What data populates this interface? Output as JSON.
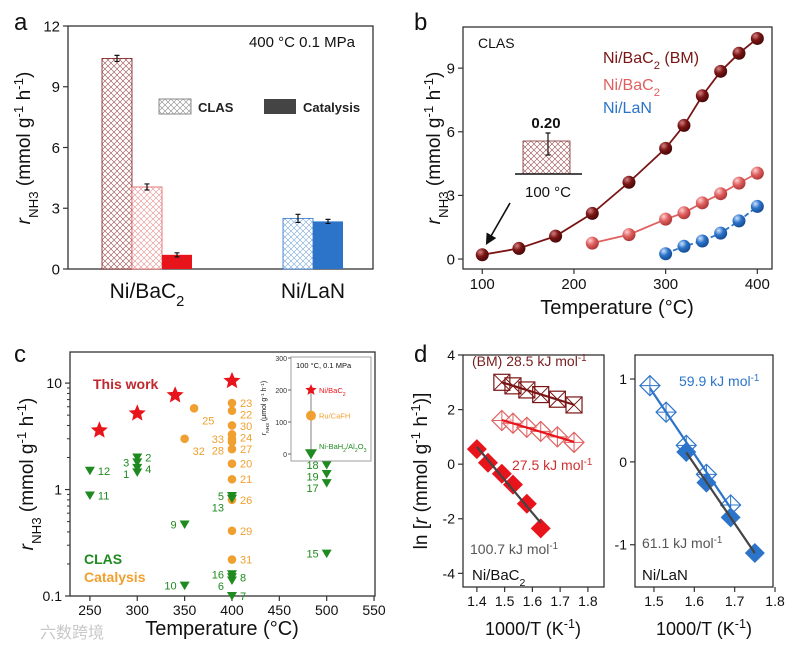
{
  "colors": {
    "bm": "#7a1515",
    "nibac2_clas": "#e06060",
    "nibac2_cat": "#e8141c",
    "lan": "#2b74c9",
    "clas_green": "#1f8a1f",
    "catalysis_orange": "#f0a030",
    "fit_gray": "#444444"
  },
  "panel_labels": [
    "a",
    "b",
    "c",
    "d"
  ],
  "watermark": "六数跨境",
  "chart_data": [
    {
      "id": "a",
      "type": "bar",
      "title": "400 °C  0.1 MPa",
      "ylabel": [
        [
          "r",
          "i"
        ],
        [
          "NH3",
          "sub"
        ],
        [
          " (mmol g",
          ""
        ],
        [
          "-1",
          "sup"
        ],
        [
          " h",
          ""
        ],
        [
          "-1",
          "sup"
        ],
        [
          ")",
          ""
        ]
      ],
      "ylim": [
        0,
        12
      ],
      "yticks": [
        0,
        3,
        6,
        9,
        12
      ],
      "categories": [
        [
          [
            "Ni/BaC",
            ""
          ],
          [
            "2",
            "sub"
          ]
        ],
        [
          [
            "Ni/LaN",
            ""
          ]
        ]
      ],
      "legend": [
        {
          "label": "CLAS",
          "style": "hatched"
        },
        {
          "label": "Catalysis",
          "style": "solid"
        }
      ],
      "bars": [
        {
          "category": 0,
          "series": "CLAS Ni/BaC2 (BM)",
          "value": 10.4,
          "error": 0.15,
          "style": "hatched",
          "color": "bm"
        },
        {
          "category": 0,
          "series": "CLAS Ni/BaC2",
          "value": 4.05,
          "error": 0.15,
          "style": "hatched",
          "color": "nibac2_clas"
        },
        {
          "category": 0,
          "series": "Catalysis Ni/BaC2",
          "value": 0.7,
          "error": 0.1,
          "style": "solid",
          "color": "nibac2_cat"
        },
        {
          "category": 1,
          "series": "CLAS Ni/LaN",
          "value": 2.5,
          "error": 0.2,
          "style": "hatched",
          "color": "lan"
        },
        {
          "category": 1,
          "series": "Catalysis Ni/LaN",
          "value": 2.35,
          "error": 0.1,
          "style": "solid",
          "color": "lan"
        }
      ]
    },
    {
      "id": "b",
      "type": "line",
      "title": "CLAS",
      "xlabel": "Temperature (°C)",
      "ylabel": [
        [
          "r",
          "i"
        ],
        [
          "NH3",
          "sub"
        ],
        [
          " (mmol g",
          ""
        ],
        [
          "-1",
          "sup"
        ],
        [
          " h",
          ""
        ],
        [
          "-1",
          "sup"
        ],
        [
          ")",
          ""
        ]
      ],
      "xlim": [
        79,
        416
      ],
      "ylim": [
        -0.47,
        10.94
      ],
      "xticks": [
        100,
        200,
        300,
        400
      ],
      "yticks": [
        0,
        3,
        6,
        9
      ],
      "series": [
        {
          "name": [
            [
              "Ni/BaC",
              ""
            ],
            [
              "2",
              "sub"
            ],
            [
              " (BM)",
              ""
            ]
          ],
          "color": "bm",
          "dash": false,
          "x": [
            100,
            140,
            180,
            220,
            260,
            300,
            320,
            340,
            360,
            380,
            400
          ],
          "y": [
            0.2,
            0.5,
            1.08,
            2.15,
            3.62,
            5.22,
            6.3,
            7.7,
            8.85,
            9.7,
            10.4
          ]
        },
        {
          "name": [
            [
              "Ni/BaC",
              ""
            ],
            [
              "2",
              "sub"
            ]
          ],
          "color": "nibac2_clas",
          "dash": false,
          "x": [
            220,
            260,
            300,
            320,
            340,
            360,
            380,
            400
          ],
          "y": [
            0.75,
            1.15,
            1.88,
            2.18,
            2.65,
            3.08,
            3.58,
            4.05
          ]
        },
        {
          "name": [
            [
              "Ni/LaN",
              ""
            ]
          ],
          "color": "lan",
          "dash": true,
          "x": [
            300,
            320,
            340,
            360,
            380,
            400
          ],
          "y": [
            0.25,
            0.6,
            0.85,
            1.22,
            1.8,
            2.48
          ]
        }
      ],
      "inset": {
        "value_label": "0.20",
        "temperature_label": "100 °C"
      }
    },
    {
      "id": "c",
      "type": "scatter",
      "xlabel": "Temperature (°C)",
      "ylabel": [
        [
          "r",
          "i"
        ],
        [
          "NH3",
          "sub"
        ],
        [
          " (mmol g",
          ""
        ],
        [
          "-1",
          "sup"
        ],
        [
          " h",
          ""
        ],
        [
          "-1",
          "sup"
        ],
        [
          ")",
          ""
        ]
      ],
      "xlim": [
        229,
        551
      ],
      "ylim": [
        0.1,
        19.6
      ],
      "yscale": "log",
      "xticks": [
        250,
        300,
        350,
        400,
        450,
        500,
        550
      ],
      "yticks": [
        0.1,
        1,
        10
      ],
      "legend": {
        "this_work": "This work",
        "clas": "CLAS",
        "catalysis": "Catalysis"
      },
      "this_work": {
        "x": [
          260,
          300,
          340,
          400
        ],
        "y": [
          3.6,
          5.2,
          7.7,
          10.5
        ]
      },
      "catalysis": [
        {
          "x": 360,
          "y": 5.8,
          "label": "25",
          "side": "below"
        },
        {
          "x": 350,
          "y": 3.0,
          "label": "32",
          "side": "below"
        },
        {
          "x": 400,
          "y": 6.5,
          "label": "23",
          "side": "right"
        },
        {
          "x": 400,
          "y": 5.5,
          "label": "22",
          "side": "right"
        },
        {
          "x": 400,
          "y": 4.0,
          "label": "30",
          "side": "right"
        },
        {
          "x": 400,
          "y": 3.3,
          "label": "24",
          "side": "right"
        },
        {
          "x": 400,
          "y": 3.0,
          "label": "33",
          "side": "left"
        },
        {
          "x": 400,
          "y": 2.8,
          "label": "27",
          "side": "right"
        },
        {
          "x": 400,
          "y": 2.4,
          "label": "28",
          "side": "left"
        },
        {
          "x": 400,
          "y": 1.75,
          "label": "20",
          "side": "right"
        },
        {
          "x": 400,
          "y": 1.25,
          "label": "21",
          "side": "right"
        },
        {
          "x": 400,
          "y": 0.8,
          "label": "26",
          "side": "right"
        },
        {
          "x": 400,
          "y": 0.41,
          "label": "29",
          "side": "right"
        },
        {
          "x": 400,
          "y": 0.22,
          "label": "31",
          "side": "right"
        }
      ],
      "clas": [
        {
          "x": 250,
          "y": 1.5,
          "label": "12",
          "side": "right"
        },
        {
          "x": 250,
          "y": 0.88,
          "label": "11",
          "side": "right"
        },
        {
          "x": 300,
          "y": 2.0,
          "label": "2",
          "side": "right"
        },
        {
          "x": 300,
          "y": 1.8,
          "label": "3",
          "side": "left"
        },
        {
          "x": 300,
          "y": 1.6,
          "label": "4",
          "side": "right"
        },
        {
          "x": 300,
          "y": 1.45,
          "label": "1",
          "side": "left"
        },
        {
          "x": 350,
          "y": 0.47,
          "label": "9",
          "side": "left"
        },
        {
          "x": 350,
          "y": 0.125,
          "label": "10",
          "side": "left"
        },
        {
          "x": 400,
          "y": 0.87,
          "label": "5",
          "side": "left"
        },
        {
          "x": 400,
          "y": 0.82,
          "label": "13",
          "side": "left"
        },
        {
          "x": 400,
          "y": 0.16,
          "label": "16",
          "side": "left"
        },
        {
          "x": 400,
          "y": 0.15,
          "label": "8",
          "side": "right"
        },
        {
          "x": 400,
          "y": 0.14,
          "label": "6",
          "side": "left"
        },
        {
          "x": 400,
          "y": 0.1,
          "label": "7",
          "side": "right"
        },
        {
          "x": 500,
          "y": 1.7,
          "label": "18",
          "side": "left"
        },
        {
          "x": 500,
          "y": 1.4,
          "label": "19",
          "side": "left"
        },
        {
          "x": 500,
          "y": 1.15,
          "label": "17",
          "side": "left"
        },
        {
          "x": 500,
          "y": 0.25,
          "label": "15",
          "side": "left"
        }
      ],
      "inset": {
        "title": "100 °C, 0.1 MPa",
        "ylabel": [
          [
            "r",
            "i"
          ],
          [
            "NH3",
            "sub"
          ],
          [
            " (μmol g",
            ""
          ],
          [
            "-1",
            "sup"
          ],
          [
            " h",
            ""
          ],
          [
            "-1",
            "sup"
          ],
          [
            ")",
            ""
          ]
        ],
        "ylim": [
          0,
          300
        ],
        "yticks": [
          0,
          100,
          200,
          300
        ],
        "points": [
          {
            "name": [
              [
                "Ni/BaC",
                ""
              ],
              [
                "2",
                "sub"
              ]
            ],
            "value": 200,
            "marker": "star",
            "color": "nibac2_cat"
          },
          {
            "name": [
              [
                "Ru/CaFH",
                ""
              ]
            ],
            "value": 120,
            "marker": "circle",
            "color": "catalysis_orange"
          },
          {
            "name": [
              [
                "Ni-BaH",
                ""
              ],
              [
                "2",
                "sub"
              ],
              [
                "/Al",
                ""
              ],
              [
                "2",
                "sub"
              ],
              [
                "O",
                ""
              ],
              [
                "3",
                "sub"
              ]
            ],
            "value": 0,
            "marker": "triangle",
            "color": "clas_green"
          }
        ]
      }
    },
    {
      "id": "d-left",
      "type": "scatter",
      "xlabel": [
        [
          "1000/T (K",
          ""
        ],
        [
          "-1",
          "sup"
        ],
        [
          ")",
          ""
        ]
      ],
      "ylabel": [
        [
          "ln [",
          ""
        ],
        [
          "r",
          "i"
        ],
        [
          " (mmol g",
          ""
        ],
        [
          "-1",
          "sup"
        ],
        [
          " h",
          ""
        ],
        [
          "-1",
          "sup"
        ],
        [
          ")]",
          ""
        ]
      ],
      "xlim": [
        1.35,
        1.858
      ],
      "ylim": [
        -4.5,
        4.0
      ],
      "xticks": [
        1.4,
        1.5,
        1.6,
        1.7,
        1.8
      ],
      "yticks": [
        -4,
        -2,
        0,
        2,
        4
      ],
      "series": [
        {
          "name": "Ni/BaC2 (BM) CLAS",
          "marker": "square-x",
          "color": "bm",
          "fit_color": "bm",
          "x": [
            1.49,
            1.53,
            1.58,
            1.63,
            1.69,
            1.75
          ],
          "y": [
            3.0,
            2.87,
            2.72,
            2.55,
            2.38,
            2.17
          ],
          "ea_label": [
            [
              "(BM) 28.5 kJ mol",
              ""
            ],
            [
              "-1",
              "sup"
            ]
          ]
        },
        {
          "name": "Ni/BaC2 CLAS",
          "marker": "diamond-x",
          "color": "nibac2_clas",
          "fit_color": "nibac2_cat",
          "x": [
            1.49,
            1.53,
            1.58,
            1.63,
            1.69,
            1.75
          ],
          "y": [
            1.6,
            1.5,
            1.35,
            1.2,
            1.0,
            0.8
          ],
          "ea_label": [
            [
              "27.5 kJ mol",
              ""
            ],
            [
              "-1",
              "sup"
            ]
          ]
        },
        {
          "name": "Ni/BaC2 catalysis",
          "marker": "diamond-filled",
          "color": "nibac2_cat",
          "fit_color": "fit_gray",
          "x": [
            1.4,
            1.44,
            1.49,
            1.53,
            1.58,
            1.63
          ],
          "y": [
            0.55,
            0.05,
            -0.35,
            -0.75,
            -1.45,
            -2.35
          ],
          "ea_label": [
            [
              "100.7 kJ mol",
              ""
            ],
            [
              "-1",
              "sup"
            ]
          ]
        }
      ],
      "material_label": [
        [
          "Ni/BaC",
          ""
        ],
        [
          "2",
          "sub"
        ]
      ]
    },
    {
      "id": "d-right",
      "type": "scatter",
      "xlabel": [
        [
          "1000/T (K",
          ""
        ],
        [
          "-1",
          "sup"
        ],
        [
          ")",
          ""
        ]
      ],
      "xlim": [
        1.453,
        1.795
      ],
      "ylim": [
        -1.51,
        1.29
      ],
      "xticks": [
        1.5,
        1.6,
        1.7,
        1.8
      ],
      "yticks": [
        -1,
        0,
        1
      ],
      "series": [
        {
          "name": "Ni/LaN CLAS",
          "marker": "diamond-x",
          "color": "lan",
          "fit_color": "lan",
          "x": [
            1.49,
            1.53,
            1.58,
            1.63,
            1.69
          ],
          "y": [
            0.92,
            0.6,
            0.2,
            -0.15,
            -0.52
          ],
          "ea_label": [
            [
              "59.9 kJ mol",
              ""
            ],
            [
              "-1",
              "sup"
            ]
          ]
        },
        {
          "name": "Ni/LaN catalysis",
          "marker": "diamond-filled",
          "color": "lan",
          "fit_color": "fit_gray",
          "x": [
            1.58,
            1.63,
            1.69,
            1.75
          ],
          "y": [
            0.12,
            -0.25,
            -0.67,
            -1.1
          ],
          "ea_label": [
            [
              "61.1 kJ mol",
              ""
            ],
            [
              "-1",
              "sup"
            ]
          ]
        }
      ],
      "material_label": [
        [
          "Ni/LaN",
          ""
        ]
      ]
    }
  ]
}
